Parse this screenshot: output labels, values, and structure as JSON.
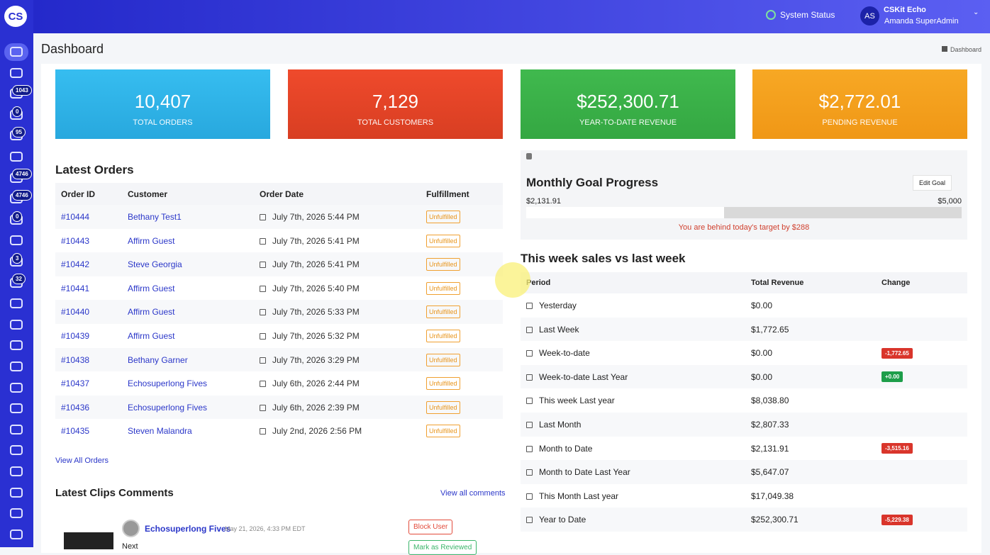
{
  "header": {
    "logo": "CS",
    "system_status": "System Status",
    "avatar_initials": "AS",
    "org_name": "CSKit Echo",
    "user_name": "Amanda SuperAdmin"
  },
  "sidebar": {
    "badges": [
      "1043",
      "0",
      "95",
      "4746",
      "4746",
      "0",
      "3",
      "32"
    ]
  },
  "page": {
    "title": "Dashboard",
    "breadcrumb": "Dashboard"
  },
  "stats": [
    {
      "value": "10,407",
      "label": "TOTAL ORDERS"
    },
    {
      "value": "7,129",
      "label": "TOTAL CUSTOMERS"
    },
    {
      "value": "$252,300.71",
      "label": "YEAR-TO-DATE REVENUE"
    },
    {
      "value": "$2,772.01",
      "label": "PENDING REVENUE"
    }
  ],
  "latest_orders": {
    "title": "Latest Orders",
    "columns": [
      "Order ID",
      "Customer",
      "Order Date",
      "Fulfillment"
    ],
    "rows": [
      [
        "#10444",
        "Bethany Test1",
        "July 7th, 2026 5:44 PM",
        "Unfulfilled"
      ],
      [
        "#10443",
        "Affirm Guest",
        "July 7th, 2026 5:41 PM",
        "Unfulfilled"
      ],
      [
        "#10442",
        "Steve Georgia",
        "July 7th, 2026 5:41 PM",
        "Unfulfilled"
      ],
      [
        "#10441",
        "Affirm Guest",
        "July 7th, 2026 5:40 PM",
        "Unfulfilled"
      ],
      [
        "#10440",
        "Affirm Guest",
        "July 7th, 2026 5:33 PM",
        "Unfulfilled"
      ],
      [
        "#10439",
        "Affirm Guest",
        "July 7th, 2026 5:32 PM",
        "Unfulfilled"
      ],
      [
        "#10438",
        "Bethany Garner",
        "July 7th, 2026 3:29 PM",
        "Unfulfilled"
      ],
      [
        "#10437",
        "Echosuperlong Fives",
        "July 6th, 2026 2:44 PM",
        "Unfulfilled"
      ],
      [
        "#10436",
        "Echosuperlong Fives",
        "July 6th, 2026 2:39 PM",
        "Unfulfilled"
      ],
      [
        "#10435",
        "Steven Malandra",
        "July 2nd, 2026 2:56 PM",
        "Unfulfilled"
      ]
    ],
    "view_all": "View All Orders"
  },
  "clips_comments": {
    "title": "Latest Clips Comments",
    "view_all": "View all comments",
    "comments": [
      {
        "author": "Echosuperlong Fives",
        "date": "May 21, 2026, 4:33 PM EDT",
        "text": "Next",
        "actions": [
          "Block User",
          "Mark as Reviewed"
        ]
      }
    ]
  },
  "monthly_goal": {
    "title": "Monthly Goal Progress",
    "edit": "Edit Goal",
    "current": "$2,131.91",
    "target": "$5,000",
    "message": "You are behind today's target by $288"
  },
  "weekly_sales": {
    "title": "This week sales vs last week",
    "columns": [
      "Period",
      "Total Revenue",
      "Change"
    ],
    "rows": [
      {
        "period": "Yesterday",
        "revenue": "$0.00"
      },
      {
        "period": "Last Week",
        "revenue": "$1,772.65"
      },
      {
        "period": "Week-to-date",
        "revenue": "$0.00",
        "change": "-1,772.65"
      },
      {
        "period": "Week-to-date Last Year",
        "revenue": "$0.00",
        "change": "+0.00"
      },
      {
        "period": "This week Last year",
        "revenue": "$8,038.80"
      },
      {
        "period": "Last Month",
        "revenue": "$2,807.33"
      },
      {
        "period": "Month to Date",
        "revenue": "$2,131.91",
        "change": "-3,515.16"
      },
      {
        "period": "Month to Date Last Year",
        "revenue": "$5,647.07"
      },
      {
        "period": "This Month Last year",
        "revenue": "$17,049.38"
      },
      {
        "period": "Year to Date",
        "revenue": "$252,300.71",
        "change": "-5,229.38"
      }
    ]
  }
}
